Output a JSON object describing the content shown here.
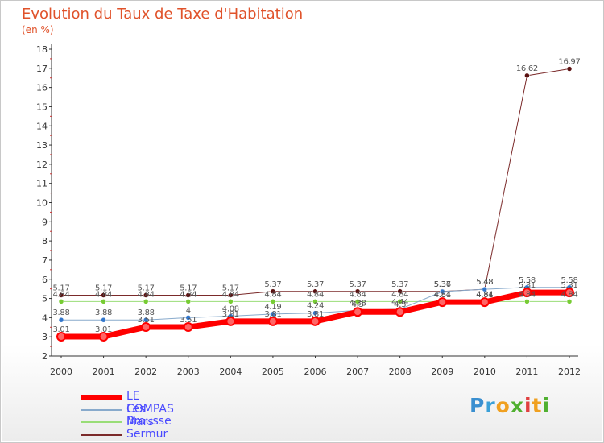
{
  "chart_data": {
    "type": "line",
    "title": "Evolution du Taux de Taxe d'Habitation",
    "subtitle": "(en %)",
    "x": [
      "2000",
      "2001",
      "2002",
      "2003",
      "2004",
      "2005",
      "2006",
      "2007",
      "2008",
      "2009",
      "2010",
      "2011",
      "2012"
    ],
    "ylim": [
      2,
      18
    ],
    "yticks": [
      2,
      3,
      4,
      5,
      6,
      7,
      8,
      9,
      10,
      11,
      12,
      13,
      14,
      15,
      16,
      17,
      18
    ],
    "grid": false,
    "legend_position": "bottom-left",
    "series": [
      {
        "name": "Sermur",
        "color": "#7b2a2a",
        "marker": "#5a1010",
        "width": 1,
        "values": [
          5.17,
          5.17,
          5.17,
          5.17,
          5.17,
          5.37,
          5.37,
          5.37,
          5.37,
          5.37,
          5.48,
          16.62,
          16.97
        ]
      },
      {
        "name": "Brousse",
        "color": "#99dd77",
        "marker": "#77cc33",
        "width": 1,
        "values": [
          4.84,
          4.84,
          4.84,
          4.84,
          4.84,
          4.84,
          4.84,
          4.84,
          4.84,
          4.84,
          4.84,
          4.84,
          4.84
        ]
      },
      {
        "name": "Les Mars",
        "color": "#88aacc",
        "marker": "#3377cc",
        "width": 1,
        "values": [
          3.88,
          3.88,
          3.88,
          4,
          4.08,
          4.19,
          4.24,
          4.38,
          4.44,
          5.36,
          5.48,
          5.58,
          5.58
        ]
      },
      {
        "name": "LE COMPAS",
        "color": "#ff0000",
        "marker": "#ff0000",
        "width": 7,
        "values": [
          3.01,
          3.01,
          3.51,
          3.51,
          3.81,
          3.81,
          3.81,
          4.3,
          4.3,
          4.81,
          4.81,
          5.31,
          5.31
        ]
      }
    ],
    "labels": [
      [
        {
          "v": "5.17",
          "dy": -6
        },
        {
          "v": "5.17",
          "dy": -6
        },
        {
          "v": "5.17",
          "dy": -6
        },
        {
          "v": "5.17",
          "dy": -6
        },
        {
          "v": "5.17",
          "dy": -6
        },
        {
          "v": "5.37",
          "dy": -6
        },
        {
          "v": "5.37",
          "dy": -6
        },
        {
          "v": "5.37",
          "dy": -6
        },
        {
          "v": "5.37",
          "dy": -6
        },
        {
          "v": "5.37",
          "dy": -6
        },
        {
          "v": "5.48",
          "dy": -6
        },
        {
          "v": "16.62",
          "dy": -6
        },
        {
          "v": "16.97",
          "dy": -6
        }
      ],
      [
        {
          "v": "4.84",
          "dy": -6
        },
        {
          "v": "4.84",
          "dy": -6
        },
        {
          "v": "4.84",
          "dy": -6
        },
        {
          "v": "4.84",
          "dy": -6
        },
        {
          "v": "4.84",
          "dy": -6
        },
        {
          "v": "4.84",
          "dy": -6
        },
        {
          "v": "4.84",
          "dy": -6
        },
        {
          "v": "4.84",
          "dy": -6
        },
        {
          "v": "4.84",
          "dy": -6
        },
        {
          "v": "4.84",
          "dy": -6
        },
        {
          "v": "4.84",
          "dy": -6
        },
        {
          "v": "4.84",
          "dy": -6
        },
        {
          "v": "4.84",
          "dy": -6
        }
      ],
      [
        {
          "v": "3.88",
          "dy": -6
        },
        {
          "v": "3.88",
          "dy": -6
        },
        {
          "v": "3.88",
          "dy": -6
        },
        {
          "v": "4",
          "dy": -6
        },
        {
          "v": "4.08",
          "dy": -6
        },
        {
          "v": "4.19",
          "dy": -6
        },
        {
          "v": "4.24",
          "dy": -6
        },
        {
          "v": "4.38",
          "dy": -6
        },
        {
          "v": "4.44",
          "dy": -6
        },
        {
          "v": "5.36",
          "dy": -6
        },
        {
          "v": "5.48",
          "dy": -6
        },
        {
          "v": "5.58",
          "dy": -6
        },
        {
          "v": "5.58",
          "dy": -6
        }
      ],
      [
        {
          "v": "3.01",
          "dy": -6
        },
        {
          "v": "3.01",
          "dy": -6
        },
        {
          "v": "3.51",
          "dy": -6
        },
        {
          "v": "3.51",
          "dy": -6
        },
        {
          "v": "3.81",
          "dy": -6
        },
        {
          "v": "3.81",
          "dy": -6
        },
        {
          "v": "3.81",
          "dy": -6
        },
        {
          "v": "4.3",
          "dy": -6
        },
        {
          "v": "4.3",
          "dy": -6
        },
        {
          "v": "4.81",
          "dy": -6
        },
        {
          "v": "4.81",
          "dy": -6
        },
        {
          "v": "5.31",
          "dy": -6
        },
        {
          "v": "5.31",
          "dy": -6
        }
      ]
    ]
  },
  "legend": {
    "items": [
      {
        "label": "LE COMPAS",
        "color": "#ff0000",
        "thickness": 7
      },
      {
        "label": "Les Mars",
        "color": "#88aacc",
        "thickness": 2
      },
      {
        "label": "Brousse",
        "color": "#99dd77",
        "thickness": 2
      },
      {
        "label": "Sermur",
        "color": "#7b2a2a",
        "thickness": 2
      }
    ]
  },
  "logo": {
    "letters": [
      "P",
      "r",
      "o",
      "x",
      "i",
      "t",
      "i"
    ],
    "colors": [
      "#3a8fd0",
      "#3aa0d8",
      "#f0a020",
      "#50b030",
      "#e04040",
      "#f0a020",
      "#50b030"
    ]
  }
}
